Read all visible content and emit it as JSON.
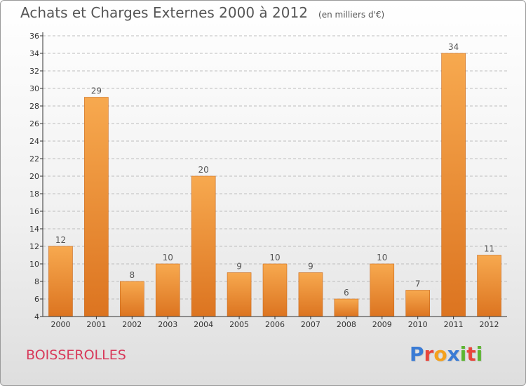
{
  "title": "Achats et Charges Externes 2000 à 2012",
  "unit_note": "(en milliers d'€)",
  "location": "BOISSEROLLES",
  "brand": {
    "letters": [
      "P",
      "r",
      "o",
      "x",
      "i",
      "t",
      "i"
    ],
    "colors": [
      "#3a7bd5",
      "#e8453c",
      "#f4a11d",
      "#3a7bd5",
      "#5cb531",
      "#e8453c",
      "#5cb531"
    ]
  },
  "colors": {
    "bar_top": "#f7a94f",
    "bar_bottom": "#dc7420",
    "bar_edge": "#c9691c",
    "axis": "#333333",
    "grid": "#bdbdbd",
    "text": "#555555"
  },
  "chart_data": {
    "type": "bar",
    "categories": [
      "2000",
      "2001",
      "2002",
      "2003",
      "2004",
      "2005",
      "2006",
      "2007",
      "2008",
      "2009",
      "2010",
      "2011",
      "2012"
    ],
    "values": [
      12,
      29,
      8,
      10,
      20,
      9,
      10,
      9,
      6,
      10,
      7,
      34,
      11
    ],
    "title": "Achats et Charges Externes 2000 à 2012",
    "xlabel": "",
    "ylabel": "",
    "ylim": [
      4,
      36
    ],
    "yticks": [
      4,
      6,
      8,
      10,
      12,
      14,
      16,
      18,
      20,
      22,
      24,
      26,
      28,
      30,
      32,
      34,
      36
    ],
    "grid": "dashed-horizontal",
    "data_labels": true
  }
}
